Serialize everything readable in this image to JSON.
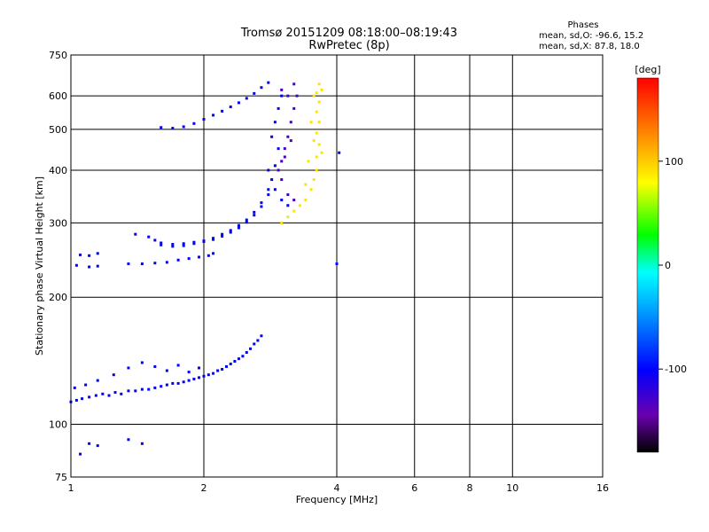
{
  "chart_data": {
    "type": "scatter",
    "title": "Tromsø 20151209 08:18:00–08:19:43",
    "subtitle": "RwPretec (8p)",
    "xlabel": "Frequency [MHz]",
    "ylabel": "Stationary phase Virtual Height [km]",
    "x_scale": "log",
    "y_scale": "log",
    "xlim": [
      1,
      16
    ],
    "ylim": [
      75,
      750
    ],
    "x_ticks": [
      1,
      2,
      4,
      6,
      8,
      10,
      16
    ],
    "y_ticks": [
      75,
      100,
      200,
      300,
      400,
      500,
      600,
      750
    ],
    "grid": true,
    "stats": {
      "heading": "Phases",
      "line_o": "mean, sd,O: -96.6, 15.2",
      "line_x": "mean, sd,X:  87.8, 18.0"
    },
    "colorbar": {
      "label": "[deg]",
      "range": [
        -180,
        180
      ],
      "ticks": [
        100,
        0,
        -100
      ]
    },
    "series": [
      {
        "mode": "O",
        "phase_deg": -100,
        "points": [
          [
            1.0,
            113
          ],
          [
            1.03,
            114
          ],
          [
            1.06,
            115
          ],
          [
            1.1,
            116
          ],
          [
            1.14,
            117
          ],
          [
            1.18,
            118
          ],
          [
            1.22,
            117
          ],
          [
            1.26,
            119
          ],
          [
            1.3,
            118
          ],
          [
            1.35,
            120
          ],
          [
            1.4,
            120
          ],
          [
            1.45,
            121
          ],
          [
            1.5,
            121
          ],
          [
            1.55,
            122
          ],
          [
            1.6,
            123
          ],
          [
            1.65,
            124
          ],
          [
            1.7,
            125
          ],
          [
            1.75,
            125
          ],
          [
            1.8,
            126
          ],
          [
            1.85,
            127
          ],
          [
            1.9,
            128
          ],
          [
            1.95,
            129
          ],
          [
            2.0,
            130
          ],
          [
            2.05,
            131
          ],
          [
            2.1,
            132
          ],
          [
            2.15,
            134
          ],
          [
            2.2,
            135
          ],
          [
            2.25,
            137
          ],
          [
            2.3,
            139
          ],
          [
            2.35,
            141
          ],
          [
            2.4,
            143
          ],
          [
            2.45,
            145
          ],
          [
            2.5,
            148
          ],
          [
            2.55,
            151
          ],
          [
            2.6,
            155
          ],
          [
            2.65,
            158
          ],
          [
            2.7,
            162
          ],
          [
            1.02,
            122
          ],
          [
            1.08,
            124
          ],
          [
            1.15,
            127
          ],
          [
            1.25,
            131
          ],
          [
            1.35,
            136
          ],
          [
            1.45,
            140
          ],
          [
            1.55,
            137
          ],
          [
            1.65,
            134
          ],
          [
            1.75,
            138
          ],
          [
            1.85,
            133
          ],
          [
            1.95,
            136
          ],
          [
            1.05,
            252
          ],
          [
            1.1,
            251
          ],
          [
            1.15,
            254
          ],
          [
            1.03,
            238
          ],
          [
            1.1,
            236
          ],
          [
            1.15,
            237
          ],
          [
            1.35,
            240
          ],
          [
            1.45,
            240
          ],
          [
            1.55,
            241
          ],
          [
            1.65,
            242
          ],
          [
            1.75,
            245
          ],
          [
            1.85,
            247
          ],
          [
            1.95,
            249
          ],
          [
            2.05,
            251
          ],
          [
            2.1,
            254
          ],
          [
            1.4,
            282
          ],
          [
            1.5,
            278
          ],
          [
            1.55,
            273
          ],
          [
            1.6,
            269
          ],
          [
            1.7,
            267
          ],
          [
            1.8,
            268
          ],
          [
            1.9,
            270
          ],
          [
            2.0,
            272
          ],
          [
            2.1,
            276
          ],
          [
            2.2,
            282
          ],
          [
            2.3,
            288
          ],
          [
            2.4,
            296
          ],
          [
            2.5,
            305
          ],
          [
            2.6,
            318
          ],
          [
            2.7,
            335
          ],
          [
            2.8,
            360
          ],
          [
            2.85,
            380
          ],
          [
            2.9,
            410
          ],
          [
            2.95,
            450
          ],
          [
            1.6,
            266
          ],
          [
            1.7,
            264
          ],
          [
            1.8,
            265
          ],
          [
            1.9,
            268
          ],
          [
            2.0,
            271
          ],
          [
            2.1,
            274
          ],
          [
            2.2,
            279
          ],
          [
            2.3,
            285
          ],
          [
            2.4,
            292
          ],
          [
            2.5,
            301
          ],
          [
            2.6,
            313
          ],
          [
            2.7,
            328
          ],
          [
            2.8,
            350
          ],
          [
            1.6,
            505
          ],
          [
            1.7,
            503
          ],
          [
            1.8,
            507
          ],
          [
            1.9,
            516
          ],
          [
            2.0,
            528
          ],
          [
            2.1,
            540
          ],
          [
            2.2,
            552
          ],
          [
            2.3,
            565
          ],
          [
            2.4,
            578
          ],
          [
            2.5,
            592
          ],
          [
            2.6,
            608
          ],
          [
            2.7,
            628
          ],
          [
            2.8,
            645
          ],
          [
            2.85,
            480
          ],
          [
            2.9,
            520
          ],
          [
            2.95,
            560
          ],
          [
            3.0,
            600
          ],
          [
            2.8,
            400
          ],
          [
            2.9,
            360
          ],
          [
            3.0,
            340
          ],
          [
            3.1,
            330
          ],
          [
            4.0,
            240
          ],
          [
            4.05,
            440
          ],
          [
            1.05,
            85
          ],
          [
            1.1,
            90
          ],
          [
            1.15,
            89
          ],
          [
            1.35,
            92
          ],
          [
            1.45,
            90
          ]
        ]
      },
      {
        "mode": "O-purple",
        "phase_deg": -130,
        "points": [
          [
            2.95,
            400
          ],
          [
            3.0,
            420
          ],
          [
            3.05,
            450
          ],
          [
            3.1,
            480
          ],
          [
            3.15,
            520
          ],
          [
            3.2,
            560
          ],
          [
            3.1,
            600
          ],
          [
            3.0,
            620
          ],
          [
            3.2,
            640
          ],
          [
            3.25,
            600
          ],
          [
            3.15,
            470
          ],
          [
            3.05,
            430
          ],
          [
            3.0,
            380
          ],
          [
            3.1,
            350
          ],
          [
            3.2,
            340
          ]
        ]
      },
      {
        "mode": "X",
        "phase_deg": 90,
        "points": [
          [
            3.0,
            300
          ],
          [
            3.1,
            310
          ],
          [
            3.2,
            320
          ],
          [
            3.3,
            330
          ],
          [
            3.4,
            340
          ],
          [
            3.5,
            360
          ],
          [
            3.55,
            380
          ],
          [
            3.6,
            400
          ],
          [
            3.6,
            430
          ],
          [
            3.65,
            460
          ],
          [
            3.6,
            490
          ],
          [
            3.65,
            520
          ],
          [
            3.6,
            550
          ],
          [
            3.65,
            580
          ],
          [
            3.6,
            610
          ],
          [
            3.65,
            640
          ],
          [
            3.45,
            420
          ],
          [
            3.55,
            470
          ],
          [
            3.5,
            520
          ],
          [
            3.55,
            600
          ],
          [
            3.7,
            620
          ],
          [
            3.4,
            370
          ],
          [
            3.7,
            440
          ]
        ]
      }
    ]
  }
}
